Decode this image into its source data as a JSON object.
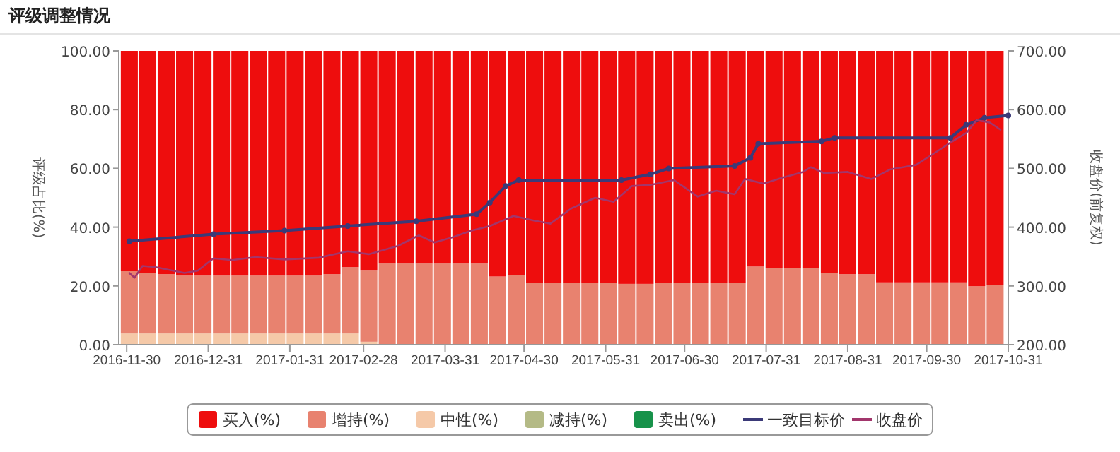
{
  "chart_data": {
    "type": "bar",
    "title": "评级调整情况",
    "ylabel": "评级占比(%)",
    "y2label": "收盘价(前复权)",
    "stacked": true,
    "legend": "bottom",
    "x": [
      "2016-12-01",
      "2016-12-08",
      "2016-12-15",
      "2016-12-22",
      "2016-12-29",
      "2017-01-05",
      "2017-01-12",
      "2017-01-19",
      "2017-01-26",
      "2017-02-02",
      "2017-02-09",
      "2017-02-16",
      "2017-02-23",
      "2017-03-02",
      "2017-03-09",
      "2017-03-16",
      "2017-03-23",
      "2017-03-30",
      "2017-04-06",
      "2017-04-13",
      "2017-04-20",
      "2017-04-27",
      "2017-05-04",
      "2017-05-11",
      "2017-05-18",
      "2017-05-25",
      "2017-06-01",
      "2017-06-08",
      "2017-06-15",
      "2017-06-22",
      "2017-06-29",
      "2017-07-06",
      "2017-07-13",
      "2017-07-20",
      "2017-07-27",
      "2017-08-03",
      "2017-08-10",
      "2017-08-17",
      "2017-08-24",
      "2017-08-31",
      "2017-09-07",
      "2017-09-14",
      "2017-09-21",
      "2017-09-28",
      "2017-10-05",
      "2017-10-12",
      "2017-10-19",
      "2017-10-26"
    ],
    "xlim": [
      "2016-11-27",
      "2017-10-31"
    ],
    "xticks": [
      "2016-11-30",
      "2016-12-31",
      "2017-01-31",
      "2017-02-28",
      "2017-03-31",
      "2017-04-30",
      "2017-05-31",
      "2017-06-30",
      "2017-07-31",
      "2017-08-31",
      "2017-09-30",
      "2017-10-31"
    ],
    "ylim": [
      0,
      100
    ],
    "yticks": [
      {
        "value": 0,
        "label": "0.00"
      },
      {
        "value": 20,
        "label": "20.00"
      },
      {
        "value": 40,
        "label": "40.00"
      },
      {
        "value": 60,
        "label": "60.00"
      },
      {
        "value": 80,
        "label": "80.00"
      },
      {
        "value": 100,
        "label": "100.00"
      }
    ],
    "y2lim": [
      200,
      700
    ],
    "y2ticks": [
      {
        "value": 200,
        "label": "200.00"
      },
      {
        "value": 300,
        "label": "300.00"
      },
      {
        "value": 400,
        "label": "400.00"
      },
      {
        "value": 500,
        "label": "500.00"
      },
      {
        "value": 600,
        "label": "600.00"
      },
      {
        "value": 700,
        "label": "700.00"
      }
    ],
    "series": [
      {
        "name": "卖出(%)",
        "color": "#17924a",
        "values": [
          0,
          0,
          0,
          0,
          0,
          0,
          0,
          0,
          0,
          0,
          0,
          0,
          0,
          0,
          0,
          0,
          0,
          0,
          0,
          0,
          0,
          0,
          0,
          0,
          0,
          0,
          0,
          0,
          0,
          0,
          0,
          0,
          0,
          0,
          0,
          0,
          0,
          0,
          0,
          0,
          0,
          0,
          0,
          0,
          0,
          0,
          0,
          0
        ]
      },
      {
        "name": "减持(%)",
        "color": "#b4ba86",
        "values": [
          0,
          0,
          0,
          0,
          0,
          0,
          0,
          0,
          0,
          0,
          0,
          0,
          0,
          0,
          0,
          0,
          0,
          0,
          0,
          0,
          0,
          0,
          0,
          0,
          0,
          0,
          0,
          0,
          0,
          0,
          0,
          0,
          0,
          0,
          0,
          0,
          0,
          0,
          0,
          0,
          0,
          0,
          0,
          0,
          0,
          0,
          0,
          0
        ]
      },
      {
        "name": "中性(%)",
        "color": "#f5c9a8",
        "values": [
          3.8,
          3.8,
          3.8,
          3.8,
          3.8,
          3.8,
          3.8,
          3.8,
          3.8,
          3.8,
          3.8,
          3.8,
          3.8,
          1,
          0,
          0,
          0,
          0,
          0,
          0,
          0,
          0,
          0,
          0,
          0,
          0,
          0,
          0,
          0,
          0,
          0,
          0,
          0,
          0,
          0,
          0,
          0,
          0,
          0,
          0,
          0,
          0,
          0,
          0,
          0,
          0,
          0,
          0
        ]
      },
      {
        "name": "增持(%)",
        "color": "#e8826f",
        "values": [
          21.2,
          20.7,
          20.2,
          19.7,
          19.7,
          19.7,
          19.7,
          19.7,
          19.7,
          19.7,
          19.7,
          20.2,
          22.6,
          24.2,
          27.6,
          27.6,
          27.6,
          27.6,
          27.6,
          27.6,
          23.2,
          23.8,
          21,
          21,
          21,
          21,
          21,
          20.7,
          20.7,
          21,
          21,
          21,
          21,
          21,
          26.6,
          26.1,
          26,
          26,
          24.4,
          24,
          24,
          21.2,
          21.2,
          21.2,
          21.2,
          21.2,
          19.9,
          20.2
        ]
      },
      {
        "name": "买入(%)",
        "color": "#ee0d0d",
        "values": [
          75,
          75.5,
          76,
          76.5,
          76.5,
          76.5,
          76.5,
          76.5,
          76.5,
          76.5,
          76.5,
          76,
          73.6,
          74.8,
          72.4,
          72.4,
          72.4,
          72.4,
          72.4,
          72.4,
          76.8,
          76.2,
          79,
          79,
          79,
          79,
          79,
          79.3,
          79.3,
          79,
          79,
          79,
          79,
          79,
          73.4,
          73.9,
          74,
          74,
          75.6,
          76,
          76,
          78.8,
          78.8,
          78.8,
          78.8,
          78.8,
          80.1,
          79.8
        ]
      },
      {
        "name": "一致目标价",
        "type": "line",
        "axis": "y2",
        "color": "#3b3a78",
        "marker": "circle",
        "x": [
          "2016-12-01",
          "2017-01-02",
          "2017-01-29",
          "2017-02-22",
          "2017-03-20",
          "2017-04-12",
          "2017-04-17",
          "2017-04-23",
          "2017-04-28",
          "2017-06-06",
          "2017-06-17",
          "2017-06-24",
          "2017-07-19",
          "2017-07-25",
          "2017-07-28",
          "2017-08-21",
          "2017-08-26",
          "2017-10-09",
          "2017-10-15",
          "2017-10-22",
          "2017-10-31"
        ],
        "values": [
          376,
          388,
          394,
          402,
          410,
          422,
          442,
          470,
          480,
          480,
          490,
          500,
          504,
          518,
          542,
          546,
          552,
          552,
          574,
          586,
          590
        ]
      },
      {
        "name": "收盘价",
        "type": "line",
        "axis": "y2",
        "color": "#a2366c",
        "x": [
          "2016-12-01",
          "2016-12-03",
          "2016-12-06",
          "2016-12-11",
          "2016-12-22",
          "2016-12-27",
          "2017-01-02",
          "2017-01-09",
          "2017-01-18",
          "2017-01-29",
          "2017-02-11",
          "2017-02-22",
          "2017-03-02",
          "2017-03-13",
          "2017-03-21",
          "2017-03-27",
          "2017-04-03",
          "2017-04-10",
          "2017-04-17",
          "2017-04-26",
          "2017-05-04",
          "2017-05-10",
          "2017-05-18",
          "2017-05-27",
          "2017-06-03",
          "2017-06-10",
          "2017-06-17",
          "2017-06-26",
          "2017-07-05",
          "2017-07-12",
          "2017-07-19",
          "2017-07-23",
          "2017-07-30",
          "2017-08-06",
          "2017-08-14",
          "2017-08-17",
          "2017-08-22",
          "2017-08-31",
          "2017-09-09",
          "2017-09-16",
          "2017-09-26",
          "2017-10-04",
          "2017-10-09",
          "2017-10-15",
          "2017-10-19",
          "2017-10-24",
          "2017-10-28"
        ],
        "values": [
          322,
          314,
          334,
          332,
          322,
          326,
          347,
          344,
          349,
          345,
          348,
          359,
          354,
          368,
          386,
          374,
          383,
          394,
          402,
          419,
          411,
          406,
          432,
          450,
          443,
          470,
          472,
          480,
          452,
          462,
          456,
          482,
          474,
          484,
          494,
          502,
          492,
          494,
          482,
          498,
          506,
          529,
          544,
          560,
          582,
          578,
          566
        ]
      }
    ]
  }
}
